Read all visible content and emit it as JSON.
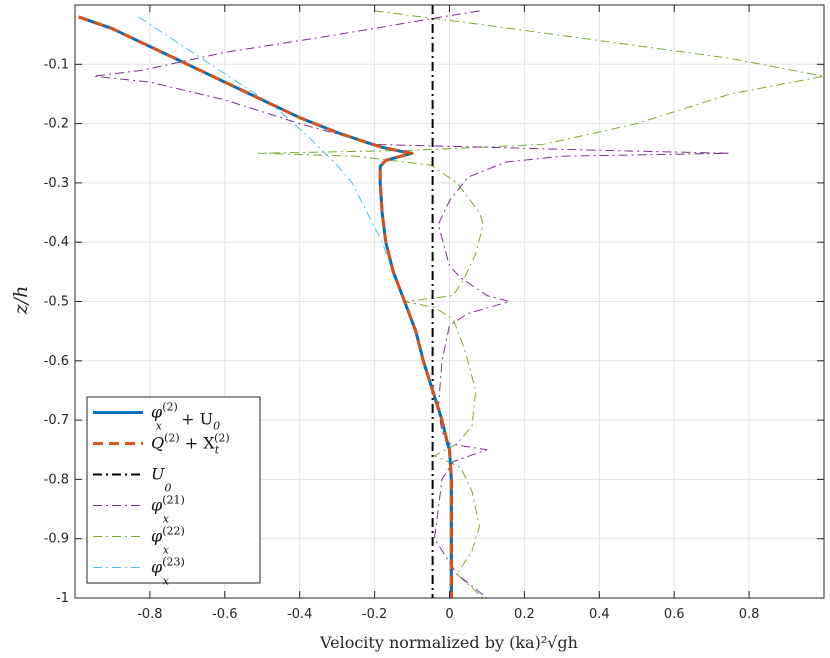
{
  "chart_data": {
    "type": "line",
    "xlabel": "Velocity normalized by (ka)²√gh",
    "ylabel": "z/h",
    "xlim": [
      -1.0,
      1.0
    ],
    "ylim": [
      -1.0,
      0.0
    ],
    "xticks": [
      -0.8,
      -0.6,
      -0.4,
      -0.2,
      0,
      0.2,
      0.4,
      0.6,
      0.8
    ],
    "yticks": [
      -0.1,
      -0.2,
      -0.3,
      -0.4,
      -0.5,
      -0.6,
      -0.7,
      -0.8,
      -0.9,
      -1
    ],
    "xtick_labels": [
      "-0.8",
      "-0.6",
      "-0.4",
      "-0.2",
      "0",
      "0.2",
      "0.4",
      "0.6",
      "0.8"
    ],
    "ytick_labels": [
      "-0.1",
      "-0.2",
      "-0.3",
      "-0.4",
      "-0.5",
      "-0.6",
      "-0.7",
      "-0.8",
      "-0.9",
      "-1"
    ],
    "grid": true,
    "legend_position": "bottom-left",
    "series": [
      {
        "name": "φx(2) + U0",
        "color": "#0072BD",
        "style": "solid",
        "width": 3,
        "points": [
          [
            -0.99,
            -0.02
          ],
          [
            -0.9,
            -0.04
          ],
          [
            -0.8,
            -0.07
          ],
          [
            -0.7,
            -0.1
          ],
          [
            -0.6,
            -0.13
          ],
          [
            -0.5,
            -0.16
          ],
          [
            -0.4,
            -0.19
          ],
          [
            -0.3,
            -0.215
          ],
          [
            -0.22,
            -0.232
          ],
          [
            -0.18,
            -0.24
          ],
          [
            -0.12,
            -0.248
          ],
          [
            -0.1,
            -0.25
          ],
          [
            -0.13,
            -0.255
          ],
          [
            -0.17,
            -0.262
          ],
          [
            -0.185,
            -0.272
          ],
          [
            -0.185,
            -0.3
          ],
          [
            -0.18,
            -0.35
          ],
          [
            -0.17,
            -0.4
          ],
          [
            -0.15,
            -0.45
          ],
          [
            -0.12,
            -0.5
          ],
          [
            -0.09,
            -0.55
          ],
          [
            -0.07,
            -0.6
          ],
          [
            -0.045,
            -0.65
          ],
          [
            -0.02,
            -0.7
          ],
          [
            -0.005,
            -0.74
          ],
          [
            0,
            -0.75
          ],
          [
            0.005,
            -0.8
          ],
          [
            0.005,
            -0.9
          ],
          [
            0.005,
            -1.0
          ]
        ]
      },
      {
        "name": "Q(2) + Xt(2)",
        "color": "#D95319",
        "style": "dashed",
        "width": 3,
        "points": [
          [
            -0.99,
            -0.02
          ],
          [
            -0.9,
            -0.04
          ],
          [
            -0.8,
            -0.07
          ],
          [
            -0.7,
            -0.1
          ],
          [
            -0.6,
            -0.13
          ],
          [
            -0.5,
            -0.16
          ],
          [
            -0.4,
            -0.19
          ],
          [
            -0.3,
            -0.215
          ],
          [
            -0.22,
            -0.232
          ],
          [
            -0.18,
            -0.24
          ],
          [
            -0.12,
            -0.248
          ],
          [
            -0.1,
            -0.25
          ],
          [
            -0.13,
            -0.255
          ],
          [
            -0.17,
            -0.262
          ],
          [
            -0.185,
            -0.272
          ],
          [
            -0.185,
            -0.3
          ],
          [
            -0.18,
            -0.35
          ],
          [
            -0.17,
            -0.4
          ],
          [
            -0.15,
            -0.45
          ],
          [
            -0.12,
            -0.5
          ],
          [
            -0.09,
            -0.55
          ],
          [
            -0.07,
            -0.6
          ],
          [
            -0.045,
            -0.65
          ],
          [
            -0.02,
            -0.7
          ],
          [
            -0.005,
            -0.74
          ],
          [
            0,
            -0.75
          ],
          [
            0.005,
            -0.8
          ],
          [
            0.005,
            -0.9
          ],
          [
            0.005,
            -1.0
          ]
        ]
      },
      {
        "name": "U0",
        "color": "#000000",
        "style": "dashdot",
        "width": 2,
        "points": [
          [
            -0.045,
            0.0
          ],
          [
            -0.045,
            -1.0
          ]
        ]
      },
      {
        "name": "φx(21)",
        "color": "#7E2F8E",
        "style": "dashdot",
        "width": 1,
        "points": [
          [
            0.08,
            -0.01
          ],
          [
            -0.02,
            -0.02
          ],
          [
            -0.3,
            -0.05
          ],
          [
            -0.6,
            -0.08
          ],
          [
            -0.82,
            -0.11
          ],
          [
            -0.95,
            -0.12
          ],
          [
            -0.8,
            -0.13
          ],
          [
            -0.6,
            -0.16
          ],
          [
            -0.4,
            -0.2
          ],
          [
            -0.2,
            -0.235
          ],
          [
            0.1,
            -0.24
          ],
          [
            0.4,
            -0.245
          ],
          [
            0.75,
            -0.25
          ],
          [
            0.3,
            -0.255
          ],
          [
            0.15,
            -0.265
          ],
          [
            0.05,
            -0.29
          ],
          [
            0,
            -0.33
          ],
          [
            -0.03,
            -0.37
          ],
          [
            0,
            -0.44
          ],
          [
            0.03,
            -0.46
          ],
          [
            0.1,
            -0.49
          ],
          [
            0.16,
            -0.5
          ],
          [
            0.05,
            -0.52
          ],
          [
            0,
            -0.54
          ],
          [
            -0.02,
            -0.6
          ],
          [
            -0.03,
            -0.68
          ],
          [
            -0.02,
            -0.72
          ],
          [
            0,
            -0.74
          ],
          [
            0.1,
            -0.75
          ],
          [
            0.01,
            -0.77
          ],
          [
            -0.02,
            -0.8
          ],
          [
            -0.04,
            -0.9
          ],
          [
            0.02,
            -0.96
          ],
          [
            0.1,
            -1.0
          ]
        ]
      },
      {
        "name": "φx(22)",
        "color": "#77AC30",
        "style": "dashdot",
        "width": 1,
        "points": [
          [
            -0.2,
            -0.01
          ],
          [
            0.05,
            -0.03
          ],
          [
            0.4,
            -0.06
          ],
          [
            0.75,
            -0.09
          ],
          [
            1.0,
            -0.12
          ],
          [
            0.75,
            -0.15
          ],
          [
            0.5,
            -0.2
          ],
          [
            0.25,
            -0.235
          ],
          [
            -0.1,
            -0.245
          ],
          [
            -0.51,
            -0.25
          ],
          [
            -0.25,
            -0.255
          ],
          [
            -0.05,
            -0.27
          ],
          [
            0.02,
            -0.3
          ],
          [
            0.08,
            -0.35
          ],
          [
            0.09,
            -0.37
          ],
          [
            0.07,
            -0.42
          ],
          [
            0.04,
            -0.46
          ],
          [
            0.01,
            -0.49
          ],
          [
            -0.12,
            -0.5
          ],
          [
            -0.04,
            -0.51
          ],
          [
            0.01,
            -0.53
          ],
          [
            0.04,
            -0.58
          ],
          [
            0.07,
            -0.65
          ],
          [
            0.06,
            -0.71
          ],
          [
            0.02,
            -0.74
          ],
          [
            -0.04,
            -0.76
          ],
          [
            0.03,
            -0.78
          ],
          [
            0.06,
            -0.82
          ],
          [
            0.08,
            -0.88
          ],
          [
            0.06,
            -0.92
          ],
          [
            0.02,
            -0.96
          ],
          [
            0.09,
            -1.0
          ]
        ]
      },
      {
        "name": "φx(23)",
        "color": "#4DBEEE",
        "style": "dashdot",
        "width": 1,
        "points": [
          [
            -0.83,
            -0.02
          ],
          [
            -0.71,
            -0.07
          ],
          [
            -0.59,
            -0.12
          ],
          [
            -0.47,
            -0.17
          ],
          [
            -0.38,
            -0.22
          ],
          [
            -0.3,
            -0.27
          ],
          [
            -0.26,
            -0.3
          ],
          [
            -0.22,
            -0.35
          ],
          [
            -0.18,
            -0.4
          ],
          [
            -0.15,
            -0.45
          ],
          [
            -0.12,
            -0.5
          ],
          [
            -0.09,
            -0.55
          ],
          [
            -0.07,
            -0.6
          ],
          [
            -0.045,
            -0.65
          ],
          [
            -0.02,
            -0.7
          ],
          [
            -0.005,
            -0.74
          ],
          [
            0,
            -0.75
          ],
          [
            0.005,
            -0.8
          ],
          [
            0.005,
            -0.9
          ],
          [
            0.005,
            -1.0
          ]
        ]
      }
    ]
  },
  "legend": {
    "entries": [
      {
        "base": "φ",
        "sub": "x",
        "sup": "(2)",
        "tail": " + U",
        "tail_sub": "0"
      },
      {
        "base": "Q",
        "sub": "",
        "sup": "(2)",
        "tail": " + X",
        "tail_sub": "t",
        "tail_sup": "(2)"
      },
      {
        "base": "U",
        "sub": "0",
        "sup": "",
        "tail": ""
      },
      {
        "base": "φ",
        "sub": "x",
        "sup": "(21)",
        "tail": ""
      },
      {
        "base": "φ",
        "sub": "x",
        "sup": "(22)",
        "tail": ""
      },
      {
        "base": "φ",
        "sub": "x",
        "sup": "(23)",
        "tail": ""
      }
    ]
  }
}
